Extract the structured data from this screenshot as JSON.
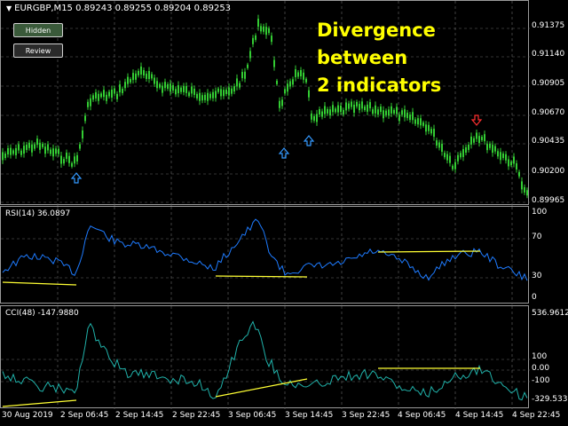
{
  "main_chart": {
    "symbol_info": "EURGBP,M15  0.89243 0.89255 0.89204 0.89253",
    "buttons": {
      "hidden": "Hidden",
      "review": "Review"
    },
    "annotation": {
      "line1": "Divergence between",
      "line2": "2 indicators"
    },
    "price_axis": [
      "0.91375",
      "0.91140",
      "0.90905",
      "0.90670",
      "0.90435",
      "0.90200",
      "0.89965"
    ],
    "arrow_up_icon": "arrow-up-icon",
    "arrow_down_icon": "arrow-down-icon",
    "colors": {
      "candles": "#33cc33",
      "up_arrow": "#3399ff",
      "down_arrow": "#ff3030",
      "background": "#000000"
    }
  },
  "rsi": {
    "label": "RSI(14) 36.0897",
    "axis": [
      "100",
      "70",
      "30",
      "0"
    ],
    "colors": {
      "line": "#1e7bff",
      "divergence": "#ffff33"
    }
  },
  "cci": {
    "label": "CCI(48) -147.9880",
    "axis": [
      "536.9612",
      "100",
      "0.00",
      "-100",
      "-329.5331"
    ],
    "colors": {
      "line": "#20b2aa",
      "divergence": "#ffff33"
    }
  },
  "time_axis": [
    "30 Aug 2019",
    "2 Sep 06:45",
    "2 Sep 14:45",
    "2 Sep 22:45",
    "3 Sep 06:45",
    "3 Sep 14:45",
    "3 Sep 22:45",
    "4 Sep 06:45",
    "4 Sep 14:45",
    "4 Sep 22:45"
  ]
}
